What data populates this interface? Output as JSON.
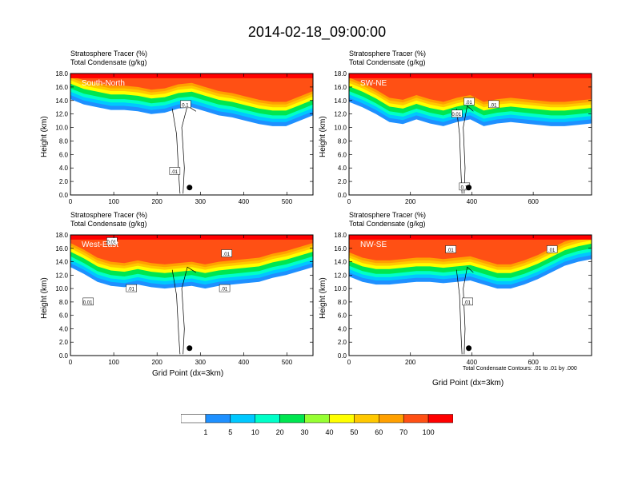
{
  "title": "2014-02-18_09:00:00",
  "colors": {
    "levels": [
      "#ffffff",
      "#1e90ff",
      "#00c8ff",
      "#00ffc8",
      "#00e650",
      "#96ff32",
      "#ffff00",
      "#ffc800",
      "#ffa000",
      "#ff5014",
      "#ff0000"
    ],
    "contour": "#000000"
  },
  "colorbar": {
    "labels": [
      "1",
      "5",
      "10",
      "20",
      "30",
      "40",
      "50",
      "60",
      "70",
      "100"
    ]
  },
  "chart_data": [
    {
      "type": "heatmap",
      "name": "South-North",
      "header": [
        "Stratosphere Tracer   (%)",
        "Total Condensate   (g/kg)"
      ],
      "panel_label": "South-North",
      "ylabel": "Height (km)",
      "ylim": [
        0,
        18
      ],
      "yticks": [
        "0.0",
        "2.0",
        "4.0",
        "6.0",
        "8.0",
        "10.0",
        "12.0",
        "14.0",
        "16.0",
        "18.0"
      ],
      "xlim": [
        0,
        560
      ],
      "xticks": [
        "0",
        "100",
        "200",
        "300",
        "400",
        "500"
      ],
      "xtick_values": [
        0,
        100,
        200,
        300,
        400,
        500
      ],
      "tracer_base_km": [
        14.2,
        13.4,
        13.0,
        12.6,
        12.6,
        12.4,
        12.0,
        12.2,
        12.8,
        13.0,
        12.4,
        11.8,
        11.5,
        11.0,
        10.5,
        10.2,
        10.2,
        11.0,
        11.8
      ],
      "contour_labels": [
        {
          "text": "0.1",
          "x": 265,
          "y": 13.4
        },
        {
          "text": ".01",
          "x": 240,
          "y": 3.5
        }
      ],
      "dot": {
        "x": 275,
        "y": 1.1
      }
    },
    {
      "type": "heatmap",
      "name": "SW-NE",
      "header": [
        "Stratosphere Tracer   (%)",
        "Total Condensate   (g/kg)"
      ],
      "panel_label": "SW-NE",
      "ylabel": "Height (km)",
      "ylim": [
        0,
        18
      ],
      "yticks": [
        "0.0",
        "2.0",
        "4.0",
        "6.0",
        "8.0",
        "10.0",
        "12.0",
        "14.0",
        "16.0",
        "18.0"
      ],
      "xlim": [
        0,
        790
      ],
      "xticks": [
        "0",
        "200",
        "400",
        "600"
      ],
      "xtick_values": [
        0,
        200,
        400,
        600
      ],
      "tracer_base_km": [
        13.8,
        13.0,
        12.0,
        10.8,
        10.5,
        11.2,
        10.6,
        10.2,
        10.8,
        11.2,
        10.2,
        10.6,
        10.8,
        10.6,
        10.4,
        10.2,
        10.2,
        10.4,
        10.6
      ],
      "contour_labels": [
        {
          "text": ".01",
          "x": 390,
          "y": 13.8
        },
        {
          "text": "0.01",
          "x": 350,
          "y": 12.0
        },
        {
          "text": ".01",
          "x": 470,
          "y": 13.4
        },
        {
          "text": "0.1",
          "x": 375,
          "y": 1.2
        }
      ],
      "dot": {
        "x": 390,
        "y": 1.1
      }
    },
    {
      "type": "heatmap",
      "name": "West-East",
      "header": [
        "Stratosphere Tracer   (%)",
        "Total Condensate   (g/kg)"
      ],
      "panel_label": "West-East",
      "ylabel": "Height (km)",
      "xlabel": "Grid Point (dx=3km)",
      "ylim": [
        0,
        18
      ],
      "yticks": [
        "0.0",
        "2.0",
        "4.0",
        "6.0",
        "8.0",
        "10.0",
        "12.0",
        "14.0",
        "16.0",
        "18.0"
      ],
      "xlim": [
        0,
        560
      ],
      "xticks": [
        "0",
        "100",
        "200",
        "300",
        "400",
        "500"
      ],
      "xtick_values": [
        0,
        100,
        200,
        300,
        400,
        500
      ],
      "tracer_base_km": [
        13.2,
        12.2,
        11.0,
        10.4,
        10.2,
        10.6,
        10.2,
        10.0,
        10.2,
        10.4,
        10.0,
        10.4,
        10.6,
        10.8,
        11.0,
        11.6,
        12.0,
        12.6,
        13.2
      ],
      "contour_labels": [
        {
          "text": ".01",
          "x": 360,
          "y": 15.2
        },
        {
          "text": ".01",
          "x": 355,
          "y": 10.0
        },
        {
          "text": ".01",
          "x": 140,
          "y": 10.0
        },
        {
          "text": "0.01",
          "x": 40,
          "y": 8.0
        },
        {
          "text": "0.01",
          "x": 95,
          "y": 17.0
        }
      ],
      "dot": {
        "x": 275,
        "y": 1.1
      }
    },
    {
      "type": "heatmap",
      "name": "NW-SE",
      "header": [
        "Stratosphere Tracer   (%)",
        "Total Condensate   (g/kg)"
      ],
      "panel_label": "NW-SE",
      "ylabel": "Height (km)",
      "xlabel": "Grid Point (dx=3km)",
      "ylim": [
        0,
        18
      ],
      "yticks": [
        "0.0",
        "2.0",
        "4.0",
        "6.0",
        "8.0",
        "10.0",
        "12.0",
        "14.0",
        "16.0",
        "18.0"
      ],
      "xlim": [
        0,
        790
      ],
      "xticks": [
        "0",
        "200",
        "400",
        "600"
      ],
      "xtick_values": [
        0,
        200,
        400,
        600
      ],
      "tracer_base_km": [
        11.8,
        11.0,
        10.6,
        10.6,
        10.8,
        11.0,
        11.0,
        10.8,
        11.0,
        11.2,
        10.6,
        10.0,
        10.0,
        10.6,
        11.4,
        12.4,
        13.4,
        14.0,
        14.4
      ],
      "contour_labels": [
        {
          "text": ".01",
          "x": 330,
          "y": 15.8
        },
        {
          "text": ".01",
          "x": 385,
          "y": 8.0
        },
        {
          "text": ".01",
          "x": 660,
          "y": 15.8
        }
      ],
      "dot": {
        "x": 390,
        "y": 1.1
      },
      "contour_note": "Total Condensate Contours: .01 to .01 by .000"
    }
  ]
}
